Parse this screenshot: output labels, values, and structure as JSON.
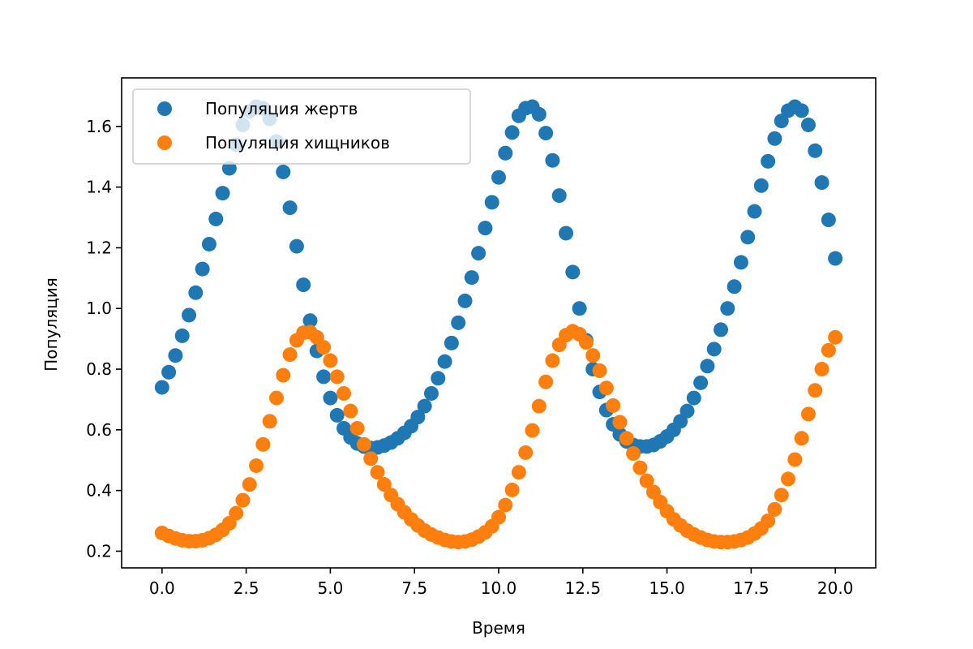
{
  "chart_data": {
    "type": "scatter",
    "title": "",
    "xlabel": "Время",
    "ylabel": "Популяция",
    "xlim": [
      -1.2,
      21.2
    ],
    "ylim": [
      0.145,
      1.76
    ],
    "grid": false,
    "legend_position": "top-left",
    "x_ticks": [
      0.0,
      2.5,
      5.0,
      7.5,
      10.0,
      12.5,
      15.0,
      17.5,
      20.0
    ],
    "x_tick_labels": [
      "0.0",
      "2.5",
      "5.0",
      "7.5",
      "10.0",
      "12.5",
      "15.0",
      "17.5",
      "20.0"
    ],
    "y_ticks": [
      0.2,
      0.4,
      0.6,
      0.8,
      1.0,
      1.2,
      1.4,
      1.6
    ],
    "y_tick_labels": [
      "0.2",
      "0.4",
      "0.6",
      "0.8",
      "1.0",
      "1.2",
      "1.4",
      "1.6"
    ],
    "x": [
      0.0,
      0.2,
      0.4,
      0.6,
      0.8,
      1.0,
      1.2,
      1.4,
      1.6,
      1.8,
      2.0,
      2.2,
      2.4,
      2.6,
      2.8,
      3.0,
      3.2,
      3.4,
      3.6,
      3.8,
      4.0,
      4.2,
      4.4,
      4.6,
      4.8,
      5.0,
      5.2,
      5.4,
      5.6,
      5.8,
      6.0,
      6.2,
      6.4,
      6.6,
      6.8,
      7.0,
      7.2,
      7.4,
      7.6,
      7.8,
      8.0,
      8.2,
      8.4,
      8.6,
      8.8,
      9.0,
      9.2,
      9.4,
      9.6,
      9.8,
      10.0,
      10.2,
      10.4,
      10.6,
      10.8,
      11.0,
      11.2,
      11.4,
      11.6,
      11.8,
      12.0,
      12.2,
      12.4,
      12.6,
      12.8,
      13.0,
      13.2,
      13.4,
      13.6,
      13.8,
      14.0,
      14.2,
      14.4,
      14.6,
      14.8,
      15.0,
      15.2,
      15.4,
      15.6,
      15.8,
      16.0,
      16.2,
      16.4,
      16.6,
      16.8,
      17.0,
      17.2,
      17.4,
      17.6,
      17.8,
      18.0,
      18.2,
      18.4,
      18.6,
      18.8,
      19.0,
      19.2,
      19.4,
      19.6,
      19.8,
      20.0
    ],
    "series": [
      {
        "name": "Популяция жертв",
        "color": "#1f77b4",
        "values": [
          0.74,
          0.79,
          0.845,
          0.91,
          0.978,
          1.052,
          1.13,
          1.212,
          1.295,
          1.38,
          1.462,
          1.54,
          1.605,
          1.65,
          1.665,
          1.66,
          1.625,
          1.55,
          1.45,
          1.332,
          1.205,
          1.078,
          0.96,
          0.86,
          0.775,
          0.705,
          0.648,
          0.605,
          0.575,
          0.555,
          0.545,
          0.54,
          0.542,
          0.548,
          0.558,
          0.572,
          0.59,
          0.612,
          0.642,
          0.678,
          0.72,
          0.77,
          0.825,
          0.886,
          0.953,
          1.025,
          1.102,
          1.182,
          1.265,
          1.35,
          1.432,
          1.512,
          1.58,
          1.635,
          1.66,
          1.665,
          1.64,
          1.578,
          1.488,
          1.372,
          1.248,
          1.12,
          1.0,
          0.895,
          0.8,
          0.725,
          0.665,
          0.618,
          0.585,
          0.562,
          0.55,
          0.545,
          0.545,
          0.55,
          0.562,
          0.578,
          0.6,
          0.628,
          0.662,
          0.705,
          0.755,
          0.81,
          0.866,
          0.93,
          1.0,
          1.072,
          1.152,
          1.235,
          1.32,
          1.405,
          1.485,
          1.56,
          1.618,
          1.652,
          1.665,
          1.652,
          1.605,
          1.52,
          1.415,
          1.292,
          1.165
        ]
      },
      {
        "name": "Популяция хищников",
        "color": "#ff7f0e",
        "values": [
          0.26,
          0.25,
          0.242,
          0.236,
          0.233,
          0.233,
          0.236,
          0.243,
          0.254,
          0.27,
          0.292,
          0.325,
          0.368,
          0.42,
          0.482,
          0.552,
          0.628,
          0.705,
          0.78,
          0.848,
          0.895,
          0.92,
          0.922,
          0.905,
          0.872,
          0.828,
          0.775,
          0.72,
          0.662,
          0.605,
          0.552,
          0.505,
          0.46,
          0.42,
          0.385,
          0.355,
          0.328,
          0.305,
          0.285,
          0.268,
          0.255,
          0.245,
          0.237,
          0.232,
          0.23,
          0.232,
          0.238,
          0.248,
          0.262,
          0.282,
          0.312,
          0.352,
          0.402,
          0.46,
          0.525,
          0.598,
          0.678,
          0.758,
          0.828,
          0.88,
          0.912,
          0.925,
          0.915,
          0.888,
          0.845,
          0.795,
          0.738,
          0.68,
          0.625,
          0.572,
          0.522,
          0.475,
          0.432,
          0.395,
          0.362,
          0.332,
          0.305,
          0.285,
          0.268,
          0.255,
          0.245,
          0.237,
          0.232,
          0.23,
          0.23,
          0.232,
          0.237,
          0.245,
          0.258,
          0.275,
          0.3,
          0.338,
          0.385,
          0.438,
          0.502,
          0.572,
          0.652,
          0.73,
          0.8,
          0.862,
          0.905
        ]
      }
    ]
  }
}
